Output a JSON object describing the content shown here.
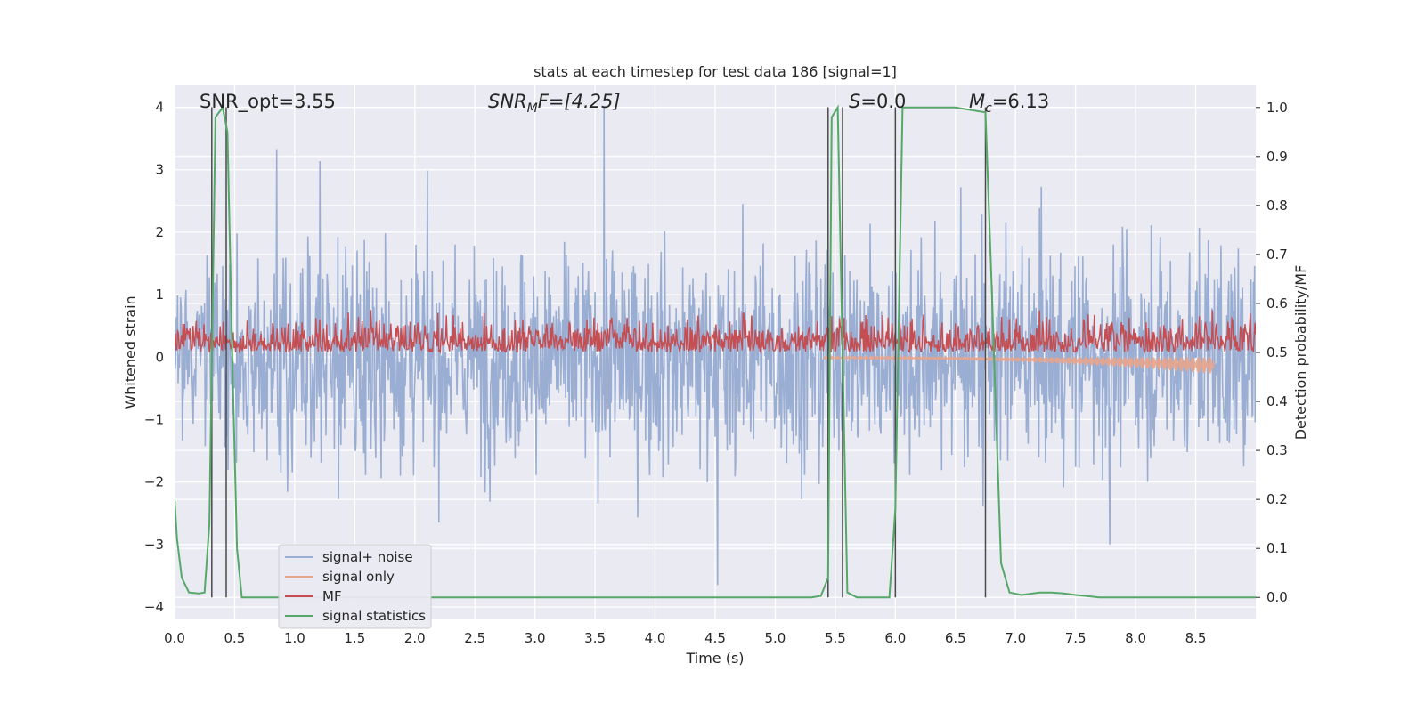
{
  "chart_data": {
    "type": "line",
    "title": "stats at each timestep for test data 186 [signal=1]",
    "xlabel": "Time (s)",
    "ylabel": "Whitened strain",
    "ylabel_right": "Detection probability/MF",
    "xlim": [
      0,
      9.0
    ],
    "ylim": [
      -4.2,
      4.35
    ],
    "ylim_right": [
      -0.045,
      1.045
    ],
    "x_ticks": [
      "0.0",
      "0.5",
      "1.0",
      "1.5",
      "2.0",
      "2.5",
      "3.0",
      "3.5",
      "4.0",
      "4.5",
      "5.0",
      "5.5",
      "6.0",
      "6.5",
      "7.0",
      "7.5",
      "8.0",
      "8.5"
    ],
    "x_tick_values": [
      0,
      0.5,
      1.0,
      1.5,
      2.0,
      2.5,
      3.0,
      3.5,
      4.0,
      4.5,
      5.0,
      5.5,
      6.0,
      6.5,
      7.0,
      7.5,
      8.0,
      8.5
    ],
    "y_ticks": [
      "4",
      "3",
      "2",
      "1",
      "0",
      "−1",
      "−2",
      "−3",
      "−4"
    ],
    "y_tick_values": [
      4,
      3,
      2,
      1,
      0,
      -1,
      -2,
      -3,
      -4
    ],
    "y_right_ticks": [
      "1.0",
      "0.9",
      "0.8",
      "0.7",
      "0.6",
      "0.5",
      "0.4",
      "0.3",
      "0.2",
      "0.1",
      "0.0"
    ],
    "y_right_tick_values": [
      1.0,
      0.9,
      0.8,
      0.7,
      0.6,
      0.5,
      0.4,
      0.3,
      0.2,
      0.1,
      0.0
    ],
    "grid": true,
    "legend_position": "lower-left",
    "annotations": [
      {
        "prefix": "SNR_opt=3.55",
        "sub": "",
        "suffix": "",
        "italic": false
      },
      {
        "prefix": "SNR",
        "sub": "M",
        "suffix": "F=[4.25]",
        "italic": true
      },
      {
        "prefix": "S",
        "sub": "",
        "suffix": "=0.0",
        "italic": true
      },
      {
        "prefix": "M",
        "sub": "c",
        "suffix": "=6.13",
        "italic": true
      }
    ],
    "vertical_lines": [
      0.31,
      0.43,
      5.44,
      5.56,
      6.0,
      6.75
    ],
    "series": [
      {
        "name": "signal+ noise",
        "color": "#9aaed3",
        "style": "noise",
        "amplitude_range": [
          -4.0,
          4.0
        ]
      },
      {
        "name": "signal only",
        "color": "#e8a48c",
        "style": "chirp",
        "start": 5.4,
        "end": 8.65,
        "peak_amplitude": -0.25
      },
      {
        "name": "MF",
        "color": "#c44e52",
        "style": "mf",
        "baseline": 0.5,
        "range": [
          0.5,
          0.62
        ]
      },
      {
        "name": "signal statistics",
        "color": "#55a868",
        "style": "steps",
        "x": [
          0.0,
          0.02,
          0.06,
          0.12,
          0.2,
          0.25,
          0.29,
          0.34,
          0.4,
          0.44,
          0.48,
          0.52,
          0.56,
          0.7,
          1.5,
          3.0,
          4.5,
          5.3,
          5.38,
          5.44,
          5.47,
          5.52,
          5.56,
          5.6,
          5.68,
          5.8,
          5.95,
          6.0,
          6.06,
          6.2,
          6.5,
          6.75,
          6.8,
          6.88,
          6.95,
          7.05,
          7.2,
          7.3,
          7.4,
          7.5,
          7.7,
          8.5,
          9.0
        ],
        "y": [
          0.2,
          0.12,
          0.04,
          0.01,
          0.008,
          0.01,
          0.15,
          0.98,
          1.0,
          0.95,
          0.5,
          0.1,
          0.0,
          0.0,
          0.0,
          0.0,
          0.0,
          0.0,
          0.003,
          0.04,
          0.98,
          1.0,
          0.5,
          0.01,
          0.0,
          0.0,
          0.0,
          0.18,
          1.0,
          1.0,
          1.0,
          0.99,
          0.65,
          0.07,
          0.01,
          0.005,
          0.01,
          0.01,
          0.008,
          0.005,
          0.0,
          0.0,
          0.0
        ]
      }
    ]
  }
}
